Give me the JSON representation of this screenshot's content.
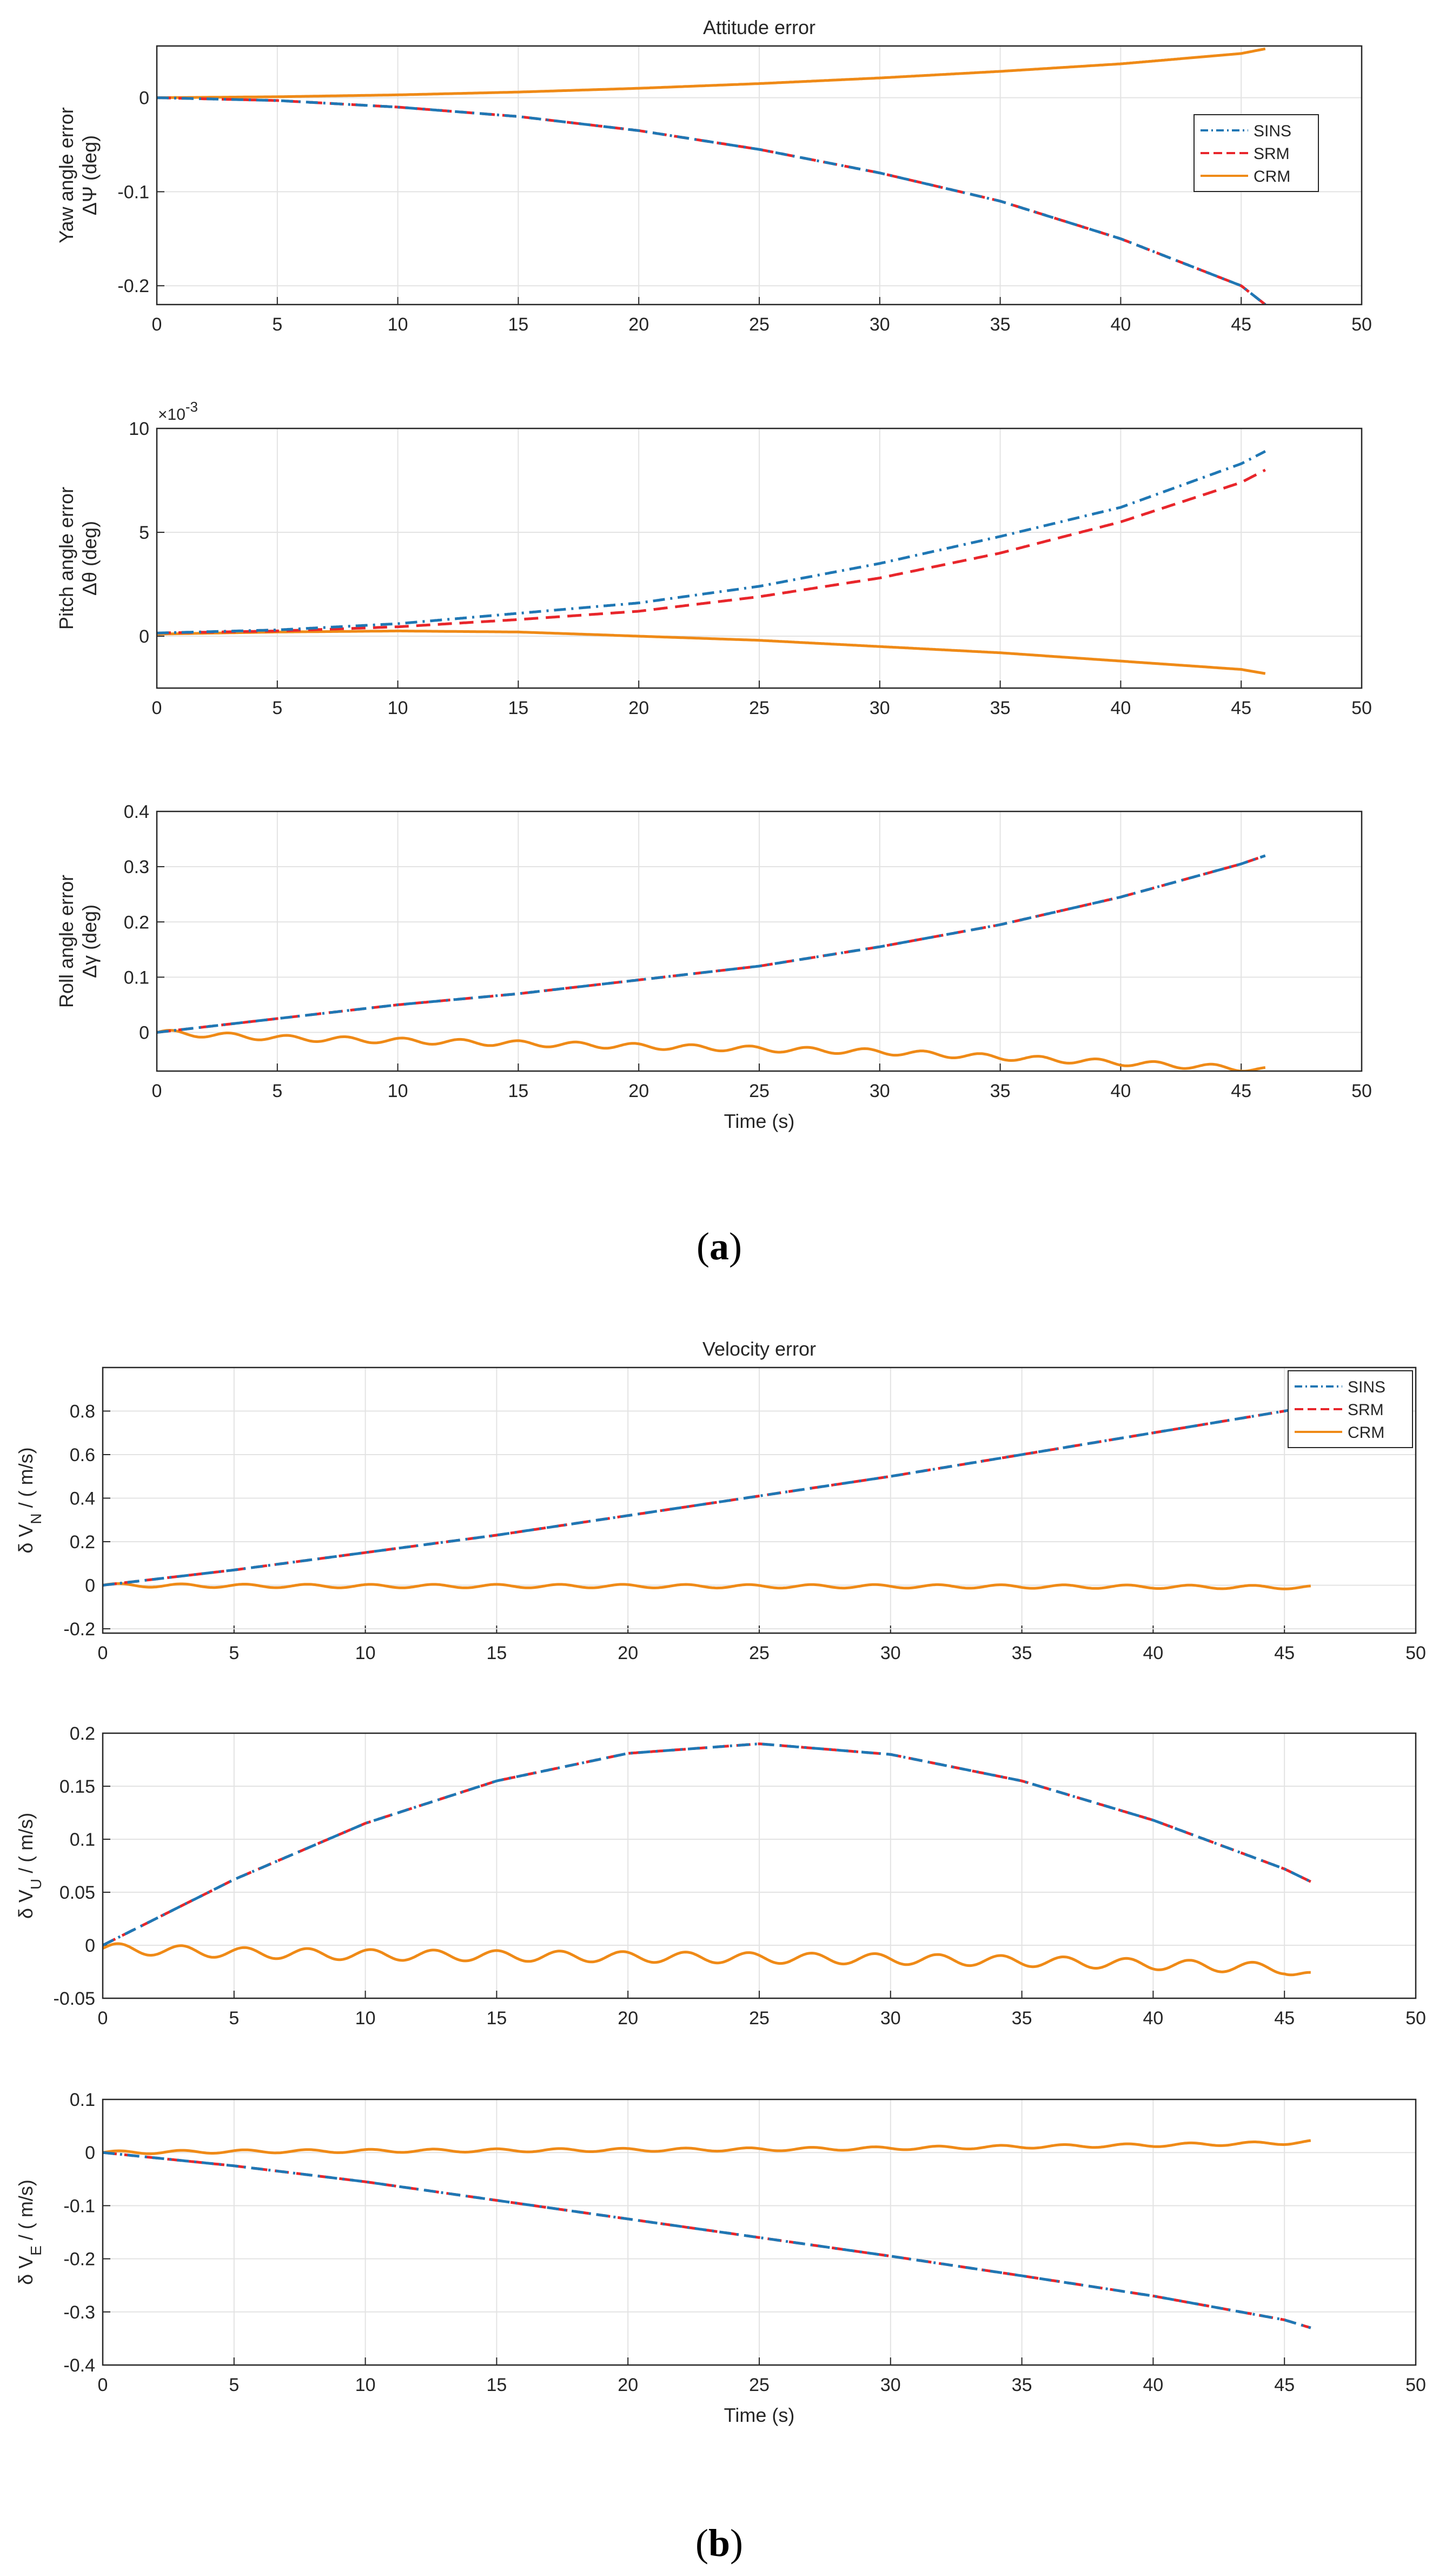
{
  "figure_a": {
    "caption_open": "(",
    "caption_letter": "a",
    "caption_close": ")",
    "title": "Attitude error",
    "xlabel": "Time (s)"
  },
  "figure_b": {
    "caption_open": "(",
    "caption_letter": "b",
    "caption_close": ")",
    "title": "Velocity error",
    "xlabel": "Time (s)"
  },
  "colors": {
    "SINS": "#1f77b4",
    "SRM": "#e8262b",
    "CRM": "#ef8a17",
    "grid": "#e3e3e3",
    "axis": "#262626"
  },
  "chart_data": [
    {
      "id": "yaw",
      "type": "line",
      "title": "Attitude error",
      "ylabel_line1": "Yaw angle error",
      "ylabel_line2": "ΔΨ (deg)",
      "xlabel": "",
      "xlim": [
        0,
        50
      ],
      "ylim": [
        -0.22,
        0.055
      ],
      "xticks": [
        "0",
        "5",
        "10",
        "15",
        "20",
        "25",
        "30",
        "35",
        "40",
        "45",
        "50"
      ],
      "yticks": [
        {
          "v": 0,
          "label": "0"
        },
        {
          "v": -0.1,
          "label": "-0.1"
        },
        {
          "v": -0.2,
          "label": "-0.2"
        }
      ],
      "legend": [
        "SINS",
        "SRM",
        "CRM"
      ],
      "legend_position": "right",
      "series": [
        {
          "name": "SINS",
          "style": "dashdot",
          "x": [
            0,
            5,
            10,
            15,
            20,
            25,
            30,
            35,
            40,
            45,
            46
          ],
          "y": [
            0,
            -0.003,
            -0.01,
            -0.02,
            -0.035,
            -0.055,
            -0.08,
            -0.11,
            -0.15,
            -0.2,
            -0.22
          ]
        },
        {
          "name": "SRM",
          "style": "dash",
          "x": [
            0,
            5,
            10,
            15,
            20,
            25,
            30,
            35,
            40,
            45,
            46
          ],
          "y": [
            0,
            -0.003,
            -0.01,
            -0.02,
            -0.035,
            -0.055,
            -0.08,
            -0.11,
            -0.15,
            -0.2,
            -0.22
          ]
        },
        {
          "name": "CRM",
          "style": "solid",
          "x": [
            0,
            5,
            10,
            15,
            20,
            25,
            30,
            35,
            40,
            45,
            46
          ],
          "y": [
            0,
            0.001,
            0.003,
            0.006,
            0.01,
            0.015,
            0.021,
            0.028,
            0.036,
            0.047,
            0.052
          ]
        }
      ]
    },
    {
      "id": "pitch",
      "type": "line",
      "title": "",
      "ylabel_line1": "Pitch angle error",
      "ylabel_line2": "Δθ (deg)",
      "xlabel": "",
      "exponent_label": "×10",
      "exponent_power": "-3",
      "xlim": [
        0,
        50
      ],
      "ylim": [
        -2.5,
        10
      ],
      "xticks": [
        "0",
        "5",
        "10",
        "15",
        "20",
        "25",
        "30",
        "35",
        "40",
        "45",
        "50"
      ],
      "yticks": [
        {
          "v": 0,
          "label": "0"
        },
        {
          "v": 5,
          "label": "5"
        },
        {
          "v": 10,
          "label": "10"
        }
      ],
      "series": [
        {
          "name": "SINS",
          "style": "dashdot",
          "x": [
            0,
            5,
            10,
            15,
            20,
            25,
            30,
            35,
            40,
            45,
            46
          ],
          "y": [
            0.15,
            0.3,
            0.6,
            1.1,
            1.6,
            2.4,
            3.5,
            4.8,
            6.2,
            8.3,
            8.9
          ]
        },
        {
          "name": "SRM",
          "style": "dash",
          "x": [
            0,
            5,
            10,
            15,
            20,
            25,
            30,
            35,
            40,
            45,
            46
          ],
          "y": [
            0.15,
            0.25,
            0.45,
            0.8,
            1.2,
            1.9,
            2.8,
            4.0,
            5.5,
            7.4,
            8.0
          ]
        },
        {
          "name": "CRM",
          "style": "solid",
          "x": [
            0,
            5,
            10,
            15,
            20,
            25,
            30,
            35,
            40,
            45,
            46
          ],
          "y": [
            0.1,
            0.2,
            0.25,
            0.2,
            0.0,
            -0.2,
            -0.5,
            -0.8,
            -1.2,
            -1.6,
            -1.8
          ]
        }
      ]
    },
    {
      "id": "roll",
      "type": "line",
      "title": "",
      "ylabel_line1": "Roll angle error",
      "ylabel_line2": "Δγ (deg)",
      "xlabel": "Time (s)",
      "xlim": [
        0,
        50
      ],
      "ylim": [
        -0.07,
        0.4
      ],
      "xticks": [
        "0",
        "5",
        "10",
        "15",
        "20",
        "25",
        "30",
        "35",
        "40",
        "45",
        "50"
      ],
      "yticks": [
        {
          "v": 0,
          "label": "0"
        },
        {
          "v": 0.1,
          "label": "0.1"
        },
        {
          "v": 0.2,
          "label": "0.2"
        },
        {
          "v": 0.3,
          "label": "0.3"
        },
        {
          "v": 0.4,
          "label": "0.4"
        }
      ],
      "series": [
        {
          "name": "SINS",
          "style": "dashdot",
          "x": [
            0,
            5,
            10,
            15,
            20,
            25,
            30,
            35,
            40,
            45,
            46
          ],
          "y": [
            0,
            0.025,
            0.05,
            0.07,
            0.095,
            0.12,
            0.155,
            0.195,
            0.245,
            0.305,
            0.32
          ]
        },
        {
          "name": "SRM",
          "style": "dash",
          "x": [
            0,
            5,
            10,
            15,
            20,
            25,
            30,
            35,
            40,
            45,
            46
          ],
          "y": [
            0,
            0.025,
            0.05,
            0.07,
            0.095,
            0.12,
            0.155,
            0.195,
            0.245,
            0.305,
            0.32
          ]
        },
        {
          "name": "CRM",
          "style": "solid",
          "osc": 0.005,
          "osc_period": 2.4,
          "x": [
            0,
            5,
            10,
            15,
            20,
            25,
            30,
            35,
            40,
            45,
            46
          ],
          "y": [
            0,
            -0.01,
            -0.015,
            -0.02,
            -0.025,
            -0.03,
            -0.035,
            -0.045,
            -0.055,
            -0.065,
            -0.068
          ]
        }
      ]
    },
    {
      "id": "vn",
      "type": "line",
      "title": "Velocity error",
      "ylabel_line1": "δ V",
      "ylabel_sub": "N",
      "ylabel_line2": " / ( m/s)",
      "xlabel": "",
      "xlim": [
        0,
        50
      ],
      "ylim": [
        -0.22,
        1.0
      ],
      "xticks": [
        "0",
        "5",
        "10",
        "15",
        "20",
        "25",
        "30",
        "35",
        "40",
        "45",
        "50"
      ],
      "yticks": [
        {
          "v": -0.2,
          "label": "-0.2"
        },
        {
          "v": 0,
          "label": "0"
        },
        {
          "v": 0.2,
          "label": "0.2"
        },
        {
          "v": 0.4,
          "label": "0.4"
        },
        {
          "v": 0.6,
          "label": "0.6"
        },
        {
          "v": 0.8,
          "label": "0.8"
        }
      ],
      "legend": [
        "SINS",
        "SRM",
        "CRM"
      ],
      "legend_position": "top-right",
      "series": [
        {
          "name": "SINS",
          "style": "dashdot",
          "x": [
            0,
            5,
            10,
            15,
            20,
            25,
            30,
            35,
            40,
            45,
            46
          ],
          "y": [
            0,
            0.07,
            0.15,
            0.23,
            0.32,
            0.41,
            0.5,
            0.6,
            0.7,
            0.8,
            0.82
          ]
        },
        {
          "name": "SRM",
          "style": "dash",
          "x": [
            0,
            5,
            10,
            15,
            20,
            25,
            30,
            35,
            40,
            45,
            46
          ],
          "y": [
            0,
            0.07,
            0.15,
            0.23,
            0.32,
            0.41,
            0.5,
            0.6,
            0.7,
            0.8,
            0.82
          ]
        },
        {
          "name": "CRM",
          "style": "solid",
          "osc": 0.008,
          "osc_period": 2.4,
          "x": [
            0,
            5,
            10,
            15,
            20,
            25,
            30,
            35,
            40,
            45,
            46
          ],
          "y": [
            0,
            -0.003,
            -0.004,
            -0.004,
            -0.004,
            -0.005,
            -0.005,
            -0.006,
            -0.007,
            -0.009,
            -0.01
          ]
        }
      ]
    },
    {
      "id": "vu",
      "type": "line",
      "title": "",
      "ylabel_line1": "δ V",
      "ylabel_sub": "U",
      "ylabel_line2": " / ( m/s)",
      "xlabel": "",
      "xlim": [
        0,
        50
      ],
      "ylim": [
        -0.05,
        0.2
      ],
      "xticks": [
        "0",
        "5",
        "10",
        "15",
        "20",
        "25",
        "30",
        "35",
        "40",
        "45",
        "50"
      ],
      "yticks": [
        {
          "v": -0.05,
          "label": "-0.05"
        },
        {
          "v": 0,
          "label": "0"
        },
        {
          "v": 0.05,
          "label": "0.05"
        },
        {
          "v": 0.1,
          "label": "0.1"
        },
        {
          "v": 0.15,
          "label": "0.15"
        },
        {
          "v": 0.2,
          "label": "0.2"
        }
      ],
      "series": [
        {
          "name": "SINS",
          "style": "dashdot",
          "x": [
            0,
            5,
            10,
            15,
            20,
            25,
            30,
            35,
            40,
            45,
            46
          ],
          "y": [
            0,
            0.062,
            0.115,
            0.155,
            0.181,
            0.19,
            0.18,
            0.155,
            0.118,
            0.072,
            0.06
          ]
        },
        {
          "name": "SRM",
          "style": "dash",
          "x": [
            0,
            5,
            10,
            15,
            20,
            25,
            30,
            35,
            40,
            45,
            46
          ],
          "y": [
            0,
            0.062,
            0.115,
            0.155,
            0.181,
            0.19,
            0.18,
            0.155,
            0.118,
            0.072,
            0.06
          ]
        },
        {
          "name": "CRM",
          "style": "solid",
          "osc": 0.005,
          "osc_period": 2.4,
          "x": [
            0,
            5,
            10,
            15,
            20,
            25,
            30,
            35,
            40,
            45,
            46
          ],
          "y": [
            -0.003,
            -0.007,
            -0.009,
            -0.01,
            -0.011,
            -0.012,
            -0.013,
            -0.015,
            -0.018,
            -0.022,
            -0.03
          ]
        }
      ]
    },
    {
      "id": "ve",
      "type": "line",
      "title": "",
      "ylabel_line1": "δ V",
      "ylabel_sub": "E",
      "ylabel_line2": " / ( m/s)",
      "xlabel": "Time (s)",
      "xlim": [
        0,
        50
      ],
      "ylim": [
        -0.4,
        0.1
      ],
      "xticks": [
        "0",
        "5",
        "10",
        "15",
        "20",
        "25",
        "30",
        "35",
        "40",
        "45",
        "50"
      ],
      "yticks": [
        {
          "v": -0.4,
          "label": "-0.4"
        },
        {
          "v": -0.3,
          "label": "-0.3"
        },
        {
          "v": -0.2,
          "label": "-0.2"
        },
        {
          "v": -0.1,
          "label": "-0.1"
        },
        {
          "v": 0,
          "label": "0"
        },
        {
          "v": 0.1,
          "label": "0.1"
        }
      ],
      "series": [
        {
          "name": "SINS",
          "style": "dashdot",
          "x": [
            0,
            5,
            10,
            15,
            20,
            25,
            30,
            35,
            40,
            45,
            46
          ],
          "y": [
            0,
            -0.025,
            -0.055,
            -0.09,
            -0.125,
            -0.16,
            -0.195,
            -0.232,
            -0.27,
            -0.315,
            -0.33
          ]
        },
        {
          "name": "SRM",
          "style": "dash",
          "x": [
            0,
            5,
            10,
            15,
            20,
            25,
            30,
            35,
            40,
            45,
            46
          ],
          "y": [
            0,
            -0.025,
            -0.055,
            -0.09,
            -0.125,
            -0.16,
            -0.195,
            -0.232,
            -0.27,
            -0.315,
            -0.33
          ]
        },
        {
          "name": "CRM",
          "style": "solid",
          "osc": 0.003,
          "osc_period": 2.4,
          "x": [
            0,
            5,
            10,
            15,
            20,
            25,
            30,
            35,
            40,
            45,
            46
          ],
          "y": [
            0,
            0.002,
            0.003,
            0.004,
            0.005,
            0.006,
            0.008,
            0.011,
            0.014,
            0.018,
            0.02
          ]
        }
      ]
    }
  ]
}
